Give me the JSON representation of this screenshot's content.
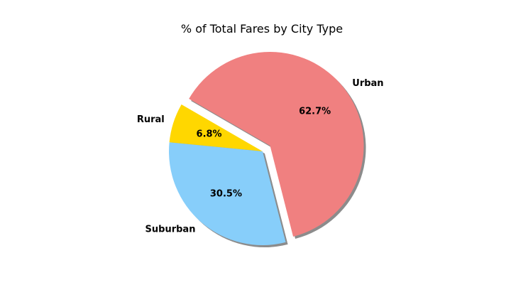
{
  "chart_data": {
    "type": "pie",
    "title": "% of Total Fares by City Type",
    "slices": [
      {
        "label": "Rural",
        "value": 6.8,
        "pct_label": "6.8%",
        "color": "#FFD700",
        "explode": false
      },
      {
        "label": "Suburban",
        "value": 30.5,
        "pct_label": "30.5%",
        "color": "#87CEFA",
        "explode": false
      },
      {
        "label": "Urban",
        "value": 62.7,
        "pct_label": "62.7%",
        "color": "#F08080",
        "explode": true
      }
    ],
    "start_angle": 150,
    "shadow": true,
    "legend": "none"
  }
}
